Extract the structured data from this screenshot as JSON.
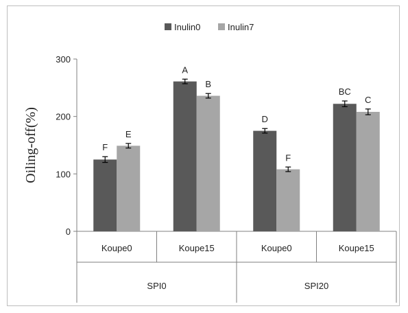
{
  "chart_data": {
    "type": "bar",
    "ylabel": "Oiling-off(%)",
    "ylim": [
      0,
      300
    ],
    "yticks": [
      0,
      100,
      200,
      300
    ],
    "grid": false,
    "legend_position": "top",
    "groups": [
      {
        "label": "SPI0",
        "categories": [
          "Koupe0",
          "Koupe15"
        ]
      },
      {
        "label": "SPI20",
        "categories": [
          "Koupe0",
          "Koupe15"
        ]
      }
    ],
    "categories": [
      "Koupe0",
      "Koupe15",
      "Koupe0",
      "Koupe15"
    ],
    "series": [
      {
        "name": "Inulin0",
        "color": "#595959",
        "values": [
          125,
          261,
          175,
          222
        ],
        "errors": [
          5,
          4,
          4,
          5
        ],
        "letters": [
          "F",
          "A",
          "D",
          "BC"
        ]
      },
      {
        "name": "Inulin7",
        "color": "#a6a6a6",
        "values": [
          149,
          236,
          108,
          208
        ],
        "errors": [
          4,
          4,
          4,
          5
        ],
        "letters": [
          "E",
          "B",
          "F",
          "C"
        ]
      }
    ]
  }
}
